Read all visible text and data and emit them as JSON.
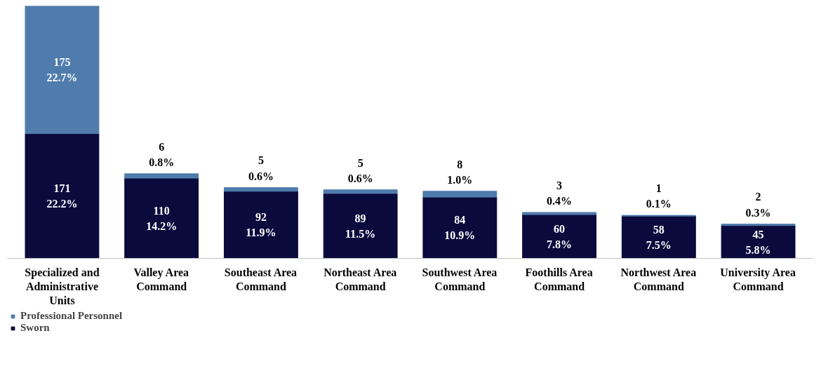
{
  "chart_data": {
    "type": "bar",
    "stacked": true,
    "categories": [
      "Specialized and Administrative Units",
      "Valley Area Command",
      "Southeast Area Command",
      "Northeast Area Command",
      "Southwest Area Command",
      "Foothills Area Command",
      "Northwest Area Command",
      "University Area Command"
    ],
    "series": [
      {
        "name": "Sworn",
        "color": "#0b0a3d",
        "values": [
          171,
          110,
          92,
          89,
          84,
          60,
          58,
          45
        ],
        "value_labels": [
          "171\n22.2%",
          "110\n14.2%",
          "92\n11.9%",
          "89\n11.5%",
          "84\n10.9%",
          "60\n7.8%",
          "58\n7.5%",
          "45\n5.8%"
        ]
      },
      {
        "name": "Professional Personnel",
        "color": "#4f7cac",
        "values": [
          175,
          6,
          5,
          5,
          8,
          3,
          1,
          2
        ],
        "value_labels": [
          "175\n22.7%",
          "6\n0.8%",
          "5\n0.6%",
          "5\n0.6%",
          "8\n1.0%",
          "3\n0.4%",
          "1\n0.1%",
          "2\n0.3%"
        ]
      }
    ],
    "legend": "bottom left"
  }
}
